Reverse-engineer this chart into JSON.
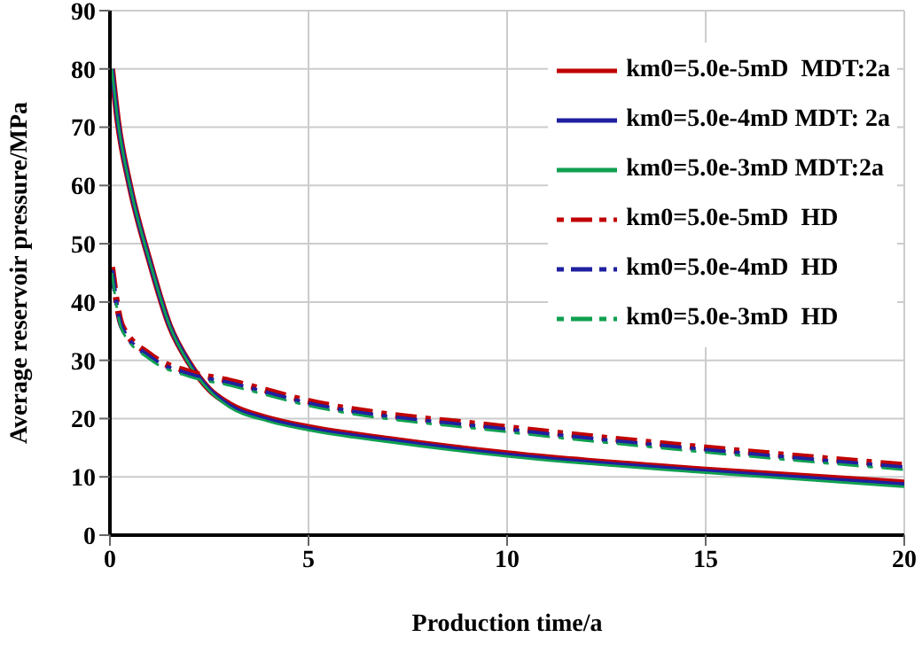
{
  "chart_data": {
    "type": "line",
    "xlabel": "Production time/a",
    "ylabel": "Average reservoir pressure/MPa",
    "xlim": [
      0,
      20
    ],
    "xticks": [
      0,
      5,
      10,
      15,
      20
    ],
    "ylim": [
      0,
      90
    ],
    "yticks": [
      0,
      10,
      20,
      30,
      40,
      50,
      60,
      70,
      80,
      90
    ],
    "grid": true,
    "legend": "top right",
    "marker": "none",
    "series": [
      {
        "name": "km0=5.0e-5mD  MDT:2a",
        "color": "#c00000",
        "line_style": "solid",
        "x": [
          0.05,
          0.2,
          0.5,
          1,
          1.5,
          2,
          2.5,
          3,
          4,
          5,
          7,
          10,
          15,
          20
        ],
        "values": [
          80,
          71,
          60,
          47,
          36,
          29.5,
          25,
          22.5,
          20,
          18.5,
          16.5,
          14,
          11.2,
          9
        ]
      },
      {
        "name": "km0=5.0e-4mD MDT: 2a",
        "color": "#2020a0",
        "line_style": "solid",
        "x": [
          0.05,
          0.2,
          0.5,
          1,
          1.5,
          2,
          2.5,
          3,
          4,
          5,
          7,
          10,
          15,
          20
        ],
        "values": [
          80,
          71,
          60,
          47,
          36,
          29.5,
          25,
          22.3,
          19.8,
          18.3,
          16.3,
          13.8,
          11,
          8.7
        ]
      },
      {
        "name": "km0=5.0e-3mD MDT:2a",
        "color": "#10a050",
        "line_style": "solid",
        "x": [
          0.05,
          0.2,
          0.5,
          1,
          1.5,
          2,
          2.5,
          3,
          4,
          5,
          7,
          10,
          15,
          20
        ],
        "values": [
          80,
          71,
          60,
          47,
          36,
          29.3,
          24.8,
          22,
          19.5,
          18,
          16,
          13.5,
          10.7,
          8.3
        ]
      },
      {
        "name": "km0=5.0e-5mD  HD",
        "color": "#c00000",
        "line_style": "dashed",
        "x": [
          0.05,
          0.3,
          1,
          2,
          3,
          5,
          10,
          15,
          20
        ],
        "values": [
          46,
          36,
          31,
          28,
          26.5,
          23,
          18.5,
          15,
          12
        ]
      },
      {
        "name": "km0=5.0e-4mD  HD",
        "color": "#2020a0",
        "line_style": "dashed",
        "x": [
          0.05,
          0.3,
          1,
          2,
          3,
          5,
          10,
          15,
          20
        ],
        "values": [
          45.5,
          35.6,
          30.6,
          27.6,
          26.1,
          22.6,
          18.1,
          14.6,
          11.6
        ]
      },
      {
        "name": "km0=5.0e-3mD  HD",
        "color": "#10a050",
        "line_style": "dashed",
        "x": [
          0.05,
          0.3,
          1,
          2,
          3,
          5,
          10,
          15,
          20
        ],
        "values": [
          45,
          35.2,
          30.2,
          27.2,
          25.7,
          22.2,
          17.7,
          14.2,
          11.2
        ]
      }
    ]
  }
}
